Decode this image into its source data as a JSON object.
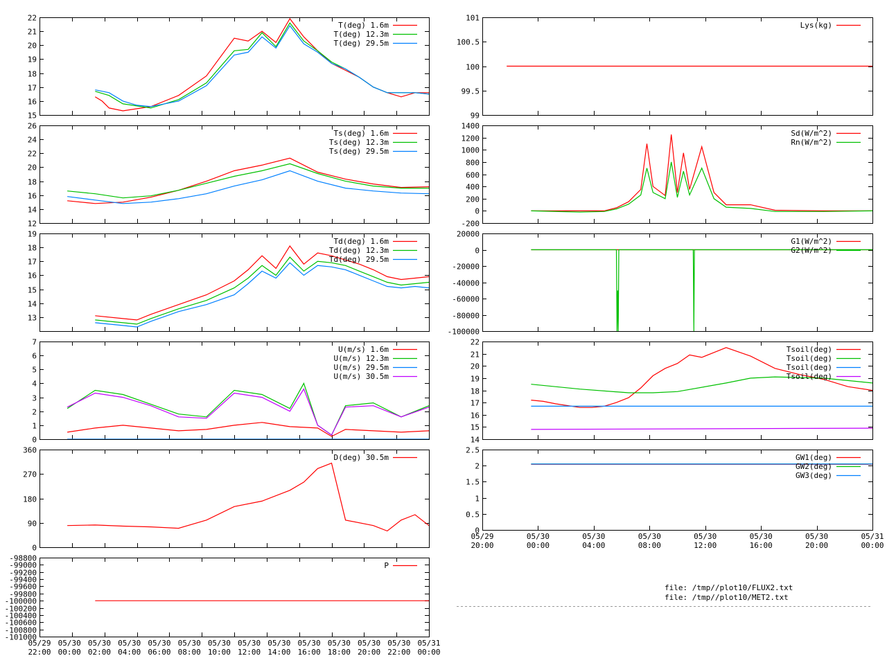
{
  "colors": {
    "c1": "#ff0000",
    "c2": "#00c000",
    "c3": "#0080ff",
    "c4": "#c000ff",
    "c5": "#808000",
    "axis": "#000000"
  },
  "files": [
    "file: /tmp//plot10/FLUX2.txt",
    "file: /tmp//plot10/MET2.txt"
  ],
  "chart_data": [
    {
      "id": "T",
      "type": "line",
      "x_range": [
        "05/29 22:00",
        "05/31 00:00"
      ],
      "ylim": [
        15,
        22
      ],
      "yticks": [
        "15",
        "16",
        "17",
        "18",
        "19",
        "20",
        "21",
        "22"
      ],
      "xtick_labels": [],
      "series": [
        {
          "name": "T(deg)  1.6m",
          "color": "c1",
          "x": [
            2,
            2.5,
            3,
            4,
            6,
            8,
            10,
            12,
            13,
            14,
            15,
            16,
            17,
            18,
            19,
            20,
            21,
            22,
            23,
            24,
            25,
            26
          ],
          "y": [
            16.3,
            16.0,
            15.5,
            15.3,
            15.6,
            16.4,
            17.8,
            20.5,
            20.3,
            21.0,
            20.2,
            21.9,
            20.6,
            19.6,
            18.7,
            18.2,
            17.7,
            17.0,
            16.6,
            16.3,
            16.6,
            16.6
          ]
        },
        {
          "name": "T(deg) 12.3m",
          "color": "c2",
          "x": [
            2,
            3,
            4,
            6,
            8,
            10,
            12,
            13,
            14,
            15,
            16,
            17,
            18,
            19,
            20,
            21,
            22,
            23,
            24,
            25,
            26
          ],
          "y": [
            16.7,
            16.4,
            15.8,
            15.5,
            16.1,
            17.3,
            19.6,
            19.7,
            20.9,
            19.9,
            21.6,
            20.3,
            19.6,
            18.8,
            18.3,
            17.7,
            17.0,
            16.6,
            16.6,
            16.6,
            16.5
          ]
        },
        {
          "name": "T(deg) 29.5m",
          "color": "c3",
          "x": [
            2,
            3,
            4,
            5,
            6,
            8,
            10,
            12,
            13,
            14,
            15,
            16,
            17,
            18,
            19,
            20,
            21,
            22,
            23,
            24,
            25,
            26
          ],
          "y": [
            16.8,
            16.6,
            16.0,
            15.7,
            15.6,
            16.0,
            17.1,
            19.3,
            19.5,
            20.6,
            19.8,
            21.4,
            20.1,
            19.5,
            18.7,
            18.3,
            17.7,
            17.0,
            16.6,
            16.6,
            16.6,
            16.5
          ]
        }
      ]
    },
    {
      "id": "Ts",
      "type": "line",
      "ylim": [
        12,
        26
      ],
      "yticks": [
        "12",
        "14",
        "16",
        "18",
        "20",
        "22",
        "24",
        "26"
      ],
      "series": [
        {
          "name": "Ts(deg)  1.6m",
          "color": "c1",
          "x": [
            0,
            2,
            4,
            6,
            8,
            10,
            12,
            14,
            16,
            18,
            20,
            22,
            24,
            26
          ],
          "y": [
            15.2,
            14.8,
            15.0,
            15.7,
            16.7,
            18.0,
            19.5,
            20.3,
            21.3,
            19.3,
            18.3,
            17.6,
            17.1,
            17.2
          ]
        },
        {
          "name": "Ts(deg) 12.3m",
          "color": "c2",
          "x": [
            0,
            2,
            4,
            6,
            8,
            10,
            12,
            14,
            16,
            18,
            20,
            22,
            24,
            26
          ],
          "y": [
            16.6,
            16.2,
            15.6,
            15.9,
            16.7,
            17.7,
            18.7,
            19.5,
            20.5,
            19.1,
            18.0,
            17.3,
            17.0,
            17.0
          ]
        },
        {
          "name": "Ts(deg) 29.5m",
          "color": "c3",
          "x": [
            0,
            2,
            4,
            6,
            8,
            10,
            12,
            14,
            16,
            18,
            20,
            22,
            24,
            26
          ],
          "y": [
            15.8,
            15.3,
            14.8,
            15.0,
            15.5,
            16.2,
            17.3,
            18.2,
            19.5,
            18.0,
            17.0,
            16.6,
            16.3,
            16.2
          ]
        }
      ]
    },
    {
      "id": "Td",
      "type": "line",
      "ylim": [
        12,
        19
      ],
      "yticks": [
        "13",
        "14",
        "15",
        "16",
        "17",
        "18",
        "19"
      ],
      "series": [
        {
          "name": "Td(deg)  1.6m",
          "color": "c1",
          "x": [
            2,
            4,
            5,
            6,
            8,
            10,
            12,
            13,
            14,
            15,
            16,
            17,
            18,
            19,
            20,
            21,
            22,
            23,
            24,
            25,
            26
          ],
          "y": [
            13.1,
            12.9,
            12.8,
            13.2,
            13.9,
            14.6,
            15.6,
            16.4,
            17.4,
            16.5,
            18.1,
            16.8,
            17.6,
            17.4,
            17.1,
            16.8,
            16.4,
            15.9,
            15.7,
            15.8,
            15.9
          ]
        },
        {
          "name": "Td(deg) 12.3m",
          "color": "c2",
          "x": [
            2,
            4,
            5,
            6,
            8,
            10,
            12,
            13,
            14,
            15,
            16,
            17,
            18,
            19,
            20,
            21,
            22,
            23,
            24,
            25,
            26
          ],
          "y": [
            12.8,
            12.6,
            12.5,
            12.9,
            13.6,
            14.2,
            15.1,
            15.8,
            16.7,
            16.0,
            17.3,
            16.3,
            17.0,
            16.9,
            16.7,
            16.3,
            15.9,
            15.5,
            15.3,
            15.4,
            15.5
          ]
        },
        {
          "name": "Td(deg) 29.5m",
          "color": "c3",
          "x": [
            2,
            4,
            5,
            6,
            8,
            10,
            12,
            13,
            14,
            15,
            16,
            17,
            18,
            19,
            20,
            21,
            22,
            23,
            24,
            25,
            26
          ],
          "y": [
            12.6,
            12.4,
            12.3,
            12.7,
            13.4,
            13.9,
            14.6,
            15.4,
            16.3,
            15.8,
            16.9,
            16.0,
            16.7,
            16.6,
            16.4,
            16.0,
            15.6,
            15.2,
            15.1,
            15.2,
            15.1
          ]
        }
      ]
    },
    {
      "id": "U",
      "type": "line",
      "ylim": [
        0,
        7
      ],
      "yticks": [
        "0",
        "1",
        "2",
        "3",
        "4",
        "5",
        "6",
        "7"
      ],
      "series": [
        {
          "name": "U(m/s)  1.6m",
          "color": "c1",
          "x": [
            0,
            2,
            4,
            6,
            8,
            10,
            12,
            14,
            16,
            18,
            19,
            20,
            22,
            24,
            26
          ],
          "y": [
            0.5,
            0.8,
            1.0,
            0.8,
            0.6,
            0.7,
            1.0,
            1.2,
            0.9,
            0.8,
            0.2,
            0.7,
            0.6,
            0.5,
            0.6
          ]
        },
        {
          "name": "U(m/s) 12.3m",
          "color": "c2",
          "x": [
            0,
            2,
            4,
            6,
            8,
            10,
            12,
            14,
            16,
            17,
            18,
            19,
            20,
            22,
            24,
            26
          ],
          "y": [
            2.2,
            3.5,
            3.2,
            2.5,
            1.8,
            1.6,
            3.5,
            3.2,
            2.2,
            4.0,
            1.0,
            0.3,
            2.4,
            2.6,
            1.6,
            2.4
          ]
        },
        {
          "name": "U(m/s) 29.5m",
          "color": "c3",
          "x": [
            0,
            26
          ],
          "y": [
            0,
            0
          ]
        },
        {
          "name": "U(m/s) 30.5m",
          "color": "c4",
          "x": [
            0,
            2,
            4,
            6,
            8,
            10,
            12,
            14,
            16,
            17,
            18,
            19,
            20,
            22,
            24,
            26
          ],
          "y": [
            2.3,
            3.3,
            3.0,
            2.4,
            1.6,
            1.5,
            3.3,
            3.0,
            2.0,
            3.6,
            1.0,
            0.3,
            2.3,
            2.4,
            1.6,
            2.3
          ]
        }
      ]
    },
    {
      "id": "D",
      "type": "line",
      "ylim": [
        0,
        360
      ],
      "yticks": [
        "0",
        "90",
        "180",
        "270",
        "360"
      ],
      "series": [
        {
          "name": "D(deg)  30.5m",
          "color": "c1",
          "x": [
            0,
            2,
            4,
            6,
            8,
            10,
            12,
            14,
            16,
            17,
            18,
            19,
            20,
            22,
            23,
            24,
            25,
            26
          ],
          "y": [
            80,
            82,
            78,
            75,
            70,
            100,
            150,
            170,
            210,
            240,
            290,
            310,
            100,
            80,
            60,
            100,
            120,
            80
          ]
        }
      ]
    },
    {
      "id": "P",
      "type": "line",
      "ylim": [
        -101000,
        -98800
      ],
      "yticks": [
        "-101000",
        "-100800",
        "-100600",
        "-100400",
        "-100200",
        "-100000",
        "-99800",
        "-99600",
        "-99400",
        "-99200",
        "-99000",
        "-98800"
      ],
      "xtick_labels": [
        [
          "05/29",
          "22:00"
        ],
        [
          "05/30",
          "00:00"
        ],
        [
          "05/30",
          "02:00"
        ],
        [
          "05/30",
          "04:00"
        ],
        [
          "05/30",
          "06:00"
        ],
        [
          "05/30",
          "08:00"
        ],
        [
          "05/30",
          "10:00"
        ],
        [
          "05/30",
          "12:00"
        ],
        [
          "05/30",
          "14:00"
        ],
        [
          "05/30",
          "16:00"
        ],
        [
          "05/30",
          "18:00"
        ],
        [
          "05/30",
          "20:00"
        ],
        [
          "05/30",
          "22:00"
        ],
        [
          "05/31",
          "00:00"
        ]
      ],
      "series": [
        {
          "name": "P",
          "color": "c1",
          "x": [
            2,
            26
          ],
          "y": [
            -100000,
            -100000
          ]
        }
      ]
    },
    {
      "id": "Lys",
      "type": "line",
      "ylim": [
        99,
        101
      ],
      "yticks": [
        "99",
        "99.5",
        "100",
        "100.5",
        "101"
      ],
      "series": [
        {
          "name": "Lys(kg)",
          "color": "c1",
          "x": [
            -2,
            28
          ],
          "y": [
            100,
            100
          ]
        }
      ]
    },
    {
      "id": "Rad",
      "type": "line",
      "ylim": [
        -200,
        1400
      ],
      "yticks": [
        "-200",
        "0",
        "200",
        "400",
        "600",
        "800",
        "1000",
        "1200",
        "1400"
      ],
      "series": [
        {
          "name": "Sd(W/m^2)",
          "color": "c1",
          "x": [
            0,
            4,
            6,
            7,
            8,
            9,
            9.5,
            10,
            11,
            11.5,
            12,
            12.5,
            13,
            14,
            15,
            16,
            18,
            20,
            24,
            28
          ],
          "y": [
            0,
            0,
            0,
            50,
            150,
            350,
            1100,
            400,
            250,
            1250,
            300,
            950,
            350,
            1050,
            300,
            100,
            100,
            10,
            0,
            0
          ]
        },
        {
          "name": "Rn(W/m^2)",
          "color": "c2",
          "x": [
            0,
            4,
            6,
            7,
            8,
            9,
            9.5,
            10,
            11,
            11.5,
            12,
            12.5,
            13,
            14,
            15,
            16,
            18,
            20,
            24,
            28
          ],
          "y": [
            0,
            -20,
            -10,
            30,
            110,
            260,
            700,
            300,
            200,
            800,
            220,
            650,
            260,
            700,
            200,
            60,
            40,
            -10,
            -10,
            0
          ]
        }
      ]
    },
    {
      "id": "G",
      "type": "line",
      "ylim": [
        -100000,
        20000
      ],
      "yticks": [
        "-100000",
        "-80000",
        "-60000",
        "-40000",
        "-20000",
        "0",
        "20000"
      ],
      "series": [
        {
          "name": "G1(W/m^2)",
          "color": "c1",
          "x": [
            0,
            28
          ],
          "y": [
            0,
            0
          ]
        },
        {
          "name": "G2(W/m^2)",
          "color": "c2",
          "x": [
            0,
            7.0,
            7.05,
            7.1,
            7.15,
            7.2,
            13.3,
            13.35,
            13.4,
            28
          ],
          "y": [
            0,
            0,
            -100000,
            -50000,
            -100000,
            0,
            0,
            -100000,
            0,
            0
          ]
        }
      ]
    },
    {
      "id": "Tsoil",
      "type": "line",
      "ylim": [
        14,
        22
      ],
      "yticks": [
        "14",
        "15",
        "16",
        "17",
        "18",
        "19",
        "20",
        "21",
        "22"
      ],
      "series": [
        {
          "name": "Tsoil(deg)",
          "color": "c1",
          "x": [
            0,
            1,
            2,
            4,
            5,
            6,
            7,
            8,
            9,
            10,
            11,
            12,
            13,
            14,
            16,
            18,
            20,
            22,
            24,
            26,
            28
          ],
          "y": [
            17.2,
            17.1,
            16.9,
            16.6,
            16.6,
            16.7,
            17.0,
            17.4,
            18.2,
            19.2,
            19.8,
            20.2,
            20.9,
            20.7,
            21.5,
            20.8,
            19.8,
            19.3,
            18.9,
            18.3,
            18.0
          ]
        },
        {
          "name": "Tsoil(deg)",
          "color": "c2",
          "x": [
            0,
            4,
            8,
            10,
            12,
            16,
            18,
            20,
            24,
            28
          ],
          "y": [
            18.5,
            18.1,
            17.8,
            17.8,
            17.9,
            18.6,
            19.0,
            19.1,
            19.0,
            18.6
          ]
        },
        {
          "name": "Tsoil(deg)",
          "color": "c3",
          "x": [
            0,
            28
          ],
          "y": [
            16.7,
            16.7
          ]
        },
        {
          "name": "Tsoil(deg)",
          "color": "c4",
          "x": [
            0,
            28
          ],
          "y": [
            14.8,
            14.9
          ]
        }
      ]
    },
    {
      "id": "GW",
      "type": "line",
      "ylim": [
        0,
        2.5
      ],
      "yticks": [
        "0",
        "0.5",
        "1",
        "1.5",
        "2",
        "2.5"
      ],
      "xtick_labels": [
        [
          "05/29",
          "20:00"
        ],
        [
          "05/30",
          "00:00"
        ],
        [
          "05/30",
          "04:00"
        ],
        [
          "05/30",
          "08:00"
        ],
        [
          "05/30",
          "12:00"
        ],
        [
          "05/30",
          "16:00"
        ],
        [
          "05/30",
          "20:00"
        ],
        [
          "05/31",
          "00:00"
        ]
      ],
      "series": [
        {
          "name": "GW1(deg)",
          "color": "c1",
          "x": [
            0,
            28
          ],
          "y": [
            2.04,
            2.04
          ]
        },
        {
          "name": "GW2(deg)",
          "color": "c2",
          "x": [
            0,
            28
          ],
          "y": [
            2.05,
            2.05
          ]
        },
        {
          "name": "GW3(deg)",
          "color": "c3",
          "x": [
            0,
            28
          ],
          "y": [
            2.05,
            2.05
          ]
        }
      ]
    }
  ]
}
